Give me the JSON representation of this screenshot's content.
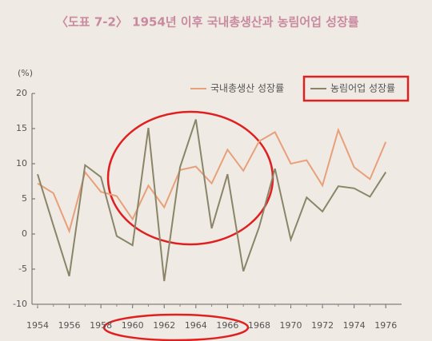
{
  "chart_data": {
    "type": "line",
    "title": "〈도표 7-2〉 1954년 이후 국내총생산과 농림어업 성장률",
    "y_label": "(%)",
    "x": [
      1954,
      1955,
      1956,
      1957,
      1958,
      1959,
      1960,
      1961,
      1962,
      1963,
      1964,
      1965,
      1966,
      1967,
      1968,
      1969,
      1970,
      1971,
      1972,
      1973,
      1974,
      1975,
      1976
    ],
    "series": [
      {
        "name": "국내총생산 성장률",
        "color": "#e8a07a",
        "values": [
          7.2,
          5.8,
          0.4,
          8.8,
          6.0,
          5.4,
          2.1,
          6.9,
          3.8,
          9.1,
          9.6,
          7.2,
          12.0,
          9.0,
          13.2,
          14.5,
          10.0,
          10.5,
          6.9,
          14.8,
          9.5,
          7.8,
          13.1
        ]
      },
      {
        "name": "농림어업 성장률",
        "color": "#8a8568",
        "values": [
          8.5,
          1.2,
          -6.0,
          9.8,
          8.1,
          -0.3,
          -1.6,
          15.1,
          -6.7,
          9.5,
          16.3,
          0.8,
          8.5,
          -5.3,
          1.0,
          9.3,
          -0.8,
          5.2,
          3.2,
          6.8,
          6.5,
          5.3,
          8.8
        ]
      }
    ],
    "xlim": [
      1954,
      1977
    ],
    "xticks": [
      1954,
      1956,
      1958,
      1960,
      1962,
      1964,
      1966,
      1968,
      1970,
      1972,
      1974,
      1976
    ],
    "ylim": [
      -10,
      20
    ],
    "yticks": [
      -10,
      -5,
      0,
      5,
      10,
      15,
      20
    ],
    "grid": false
  }
}
